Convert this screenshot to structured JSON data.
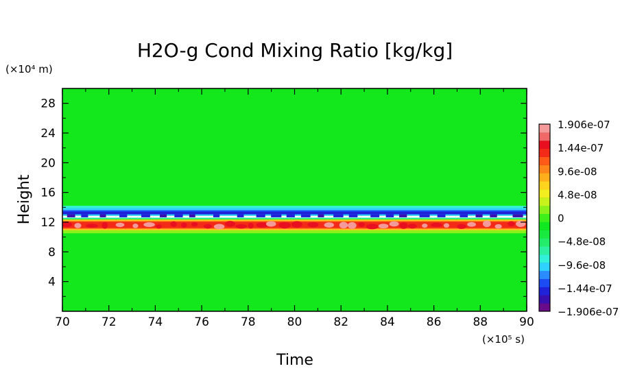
{
  "chart_data": {
    "type": "heatmap",
    "title": "H2O-g Cond Mixing Ratio [kg/kg]",
    "xlabel": "Time",
    "ylabel": "Height",
    "x_unit": "(×10⁵ s)",
    "y_unit": "(×10⁴ m)",
    "xlim": [
      70,
      90
    ],
    "ylim": [
      0,
      30
    ],
    "x_ticks": [
      "70",
      "72",
      "74",
      "76",
      "78",
      "80",
      "82",
      "84",
      "86",
      "88",
      "90"
    ],
    "y_ticks": [
      "4",
      "8",
      "12",
      "16",
      "20",
      "24",
      "28"
    ],
    "x_tick_values": [
      70,
      72,
      74,
      76,
      78,
      80,
      82,
      84,
      86,
      88,
      90
    ],
    "y_tick_values": [
      4,
      8,
      12,
      16,
      20,
      24,
      28
    ],
    "background_value": 0,
    "features": [
      {
        "name": "",
        "height_center": 13.2,
        "height_halfwidth": 0.6,
        "value": -1.2e-07
      },
      {
        "name": "",
        "height_center": 11.8,
        "height_halfwidth": 0.8,
        "value": 1.2e-07
      }
    ],
    "colorbar": {
      "min": -1.906e-07,
      "max": 1.906e-07,
      "labels": [
        "1.906e-07",
        "1.44e-07",
        "9.6e-08",
        "4.8e-08",
        "0",
        "−4.8e-08",
        "−9.6e-08",
        "−1.44e-07",
        "−1.906e-07"
      ],
      "colors": [
        "#6a0c8a",
        "#3a0fb0",
        "#1f22d8",
        "#1e4cf4",
        "#2b8cff",
        "#2fd2ff",
        "#33f1d8",
        "#2ef0a3",
        "#22ec6a",
        "#18ea40",
        "#10e820",
        "#3fef1a",
        "#8af21a",
        "#c8f21c",
        "#f2ee20",
        "#ffd21e",
        "#ffae1c",
        "#ff861a",
        "#ff5a18",
        "#f42a18",
        "#e81020",
        "#f06868",
        "#f59a9a"
      ]
    }
  }
}
